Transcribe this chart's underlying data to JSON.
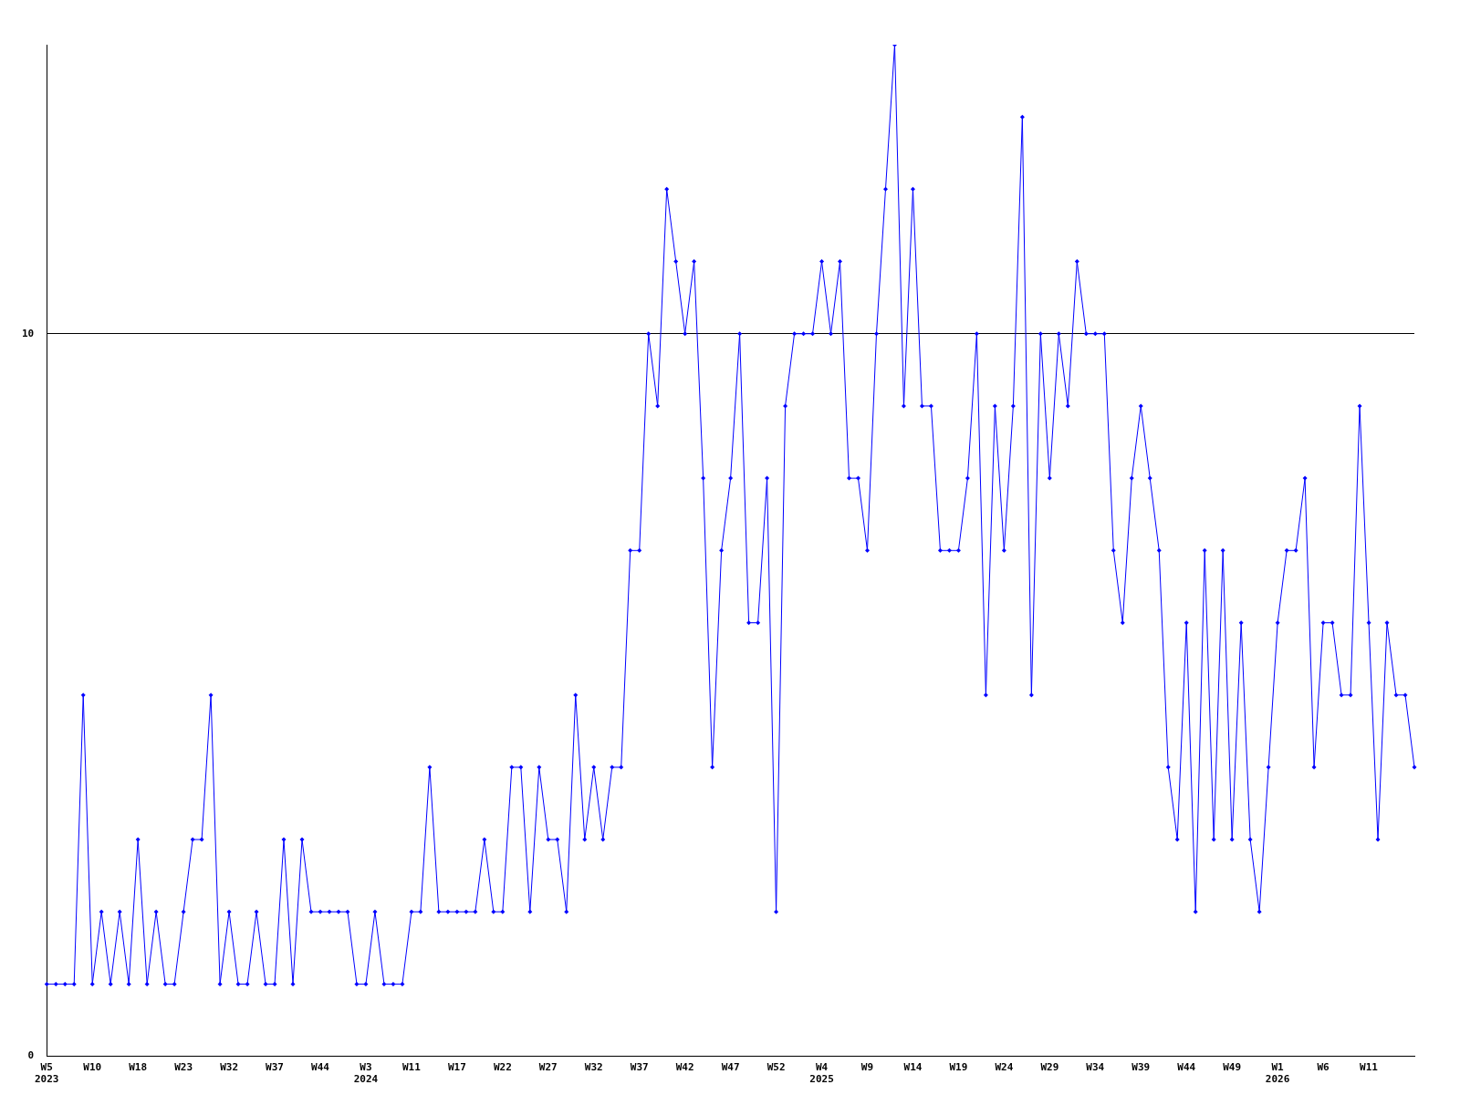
{
  "chart_data": {
    "type": "line",
    "categories": [
      "W5\n2023",
      null,
      null,
      null,
      null,
      "W10",
      null,
      null,
      null,
      null,
      "W18",
      null,
      null,
      null,
      null,
      "W23",
      null,
      null,
      null,
      null,
      "W32",
      null,
      null,
      null,
      null,
      "W37",
      null,
      null,
      null,
      null,
      "W44",
      null,
      null,
      null,
      null,
      "W3\n2024",
      null,
      null,
      null,
      null,
      "W11",
      null,
      null,
      null,
      null,
      "W17",
      null,
      null,
      null,
      null,
      "W22",
      null,
      null,
      null,
      null,
      "W27",
      null,
      null,
      null,
      null,
      "W32",
      null,
      null,
      null,
      null,
      "W37",
      null,
      null,
      null,
      null,
      "W42",
      null,
      null,
      null,
      null,
      "W47",
      null,
      null,
      null,
      null,
      "W52",
      null,
      null,
      null,
      null,
      "W4\n2025",
      null,
      null,
      null,
      null,
      "W9",
      null,
      null,
      null,
      null,
      "W14",
      null,
      null,
      null,
      null,
      "W19",
      null,
      null,
      null,
      null,
      "W24",
      null,
      null,
      null,
      null,
      "W29",
      null,
      null,
      null,
      null,
      "W34",
      null,
      null,
      null,
      null,
      "W39",
      null,
      null,
      null,
      null,
      "W44",
      null,
      null,
      null,
      null,
      "W49",
      null,
      null,
      null,
      null,
      "W1\n2026",
      null,
      null,
      null,
      null,
      "W6",
      null,
      null,
      null,
      null,
      "W11",
      null,
      null,
      null,
      null,
      null
    ],
    "series": [
      {
        "color": "#0000ff",
        "values": [
          1,
          1,
          1,
          1,
          5,
          1,
          2,
          1,
          2,
          1,
          3,
          1,
          2,
          1,
          1,
          2,
          3,
          3,
          5,
          1,
          2,
          1,
          1,
          2,
          1,
          1,
          3,
          1,
          3,
          2,
          2,
          2,
          2,
          2,
          1,
          1,
          2,
          1,
          1,
          1,
          2,
          2,
          4,
          2,
          2,
          2,
          2,
          2,
          3,
          2,
          2,
          4,
          4,
          2,
          4,
          3,
          3,
          2,
          5,
          3,
          4,
          3,
          4,
          4,
          7,
          7,
          10,
          9,
          12,
          11,
          10,
          11,
          8,
          4,
          7,
          8,
          10,
          6,
          6,
          8,
          2,
          9,
          10,
          10,
          10,
          11,
          10,
          11,
          8,
          8,
          7,
          10,
          12,
          14,
          9,
          12,
          9,
          9,
          7,
          7,
          7,
          8,
          10,
          5,
          9,
          7,
          9,
          13,
          5,
          10,
          8,
          10,
          9,
          11,
          10,
          10,
          10,
          7,
          6,
          8,
          9,
          8,
          7,
          4,
          3,
          6,
          2,
          7,
          3,
          7,
          3,
          6,
          3,
          2,
          4,
          6,
          7,
          7,
          8,
          4,
          6,
          6,
          5,
          5,
          9,
          6,
          3,
          6,
          5,
          5,
          4
        ]
      }
    ],
    "ylim": [
      0,
      14
    ],
    "yticks": [
      0,
      10
    ],
    "grid": "y",
    "legend": false,
    "marker": "diamond",
    "line_style": "solid"
  }
}
